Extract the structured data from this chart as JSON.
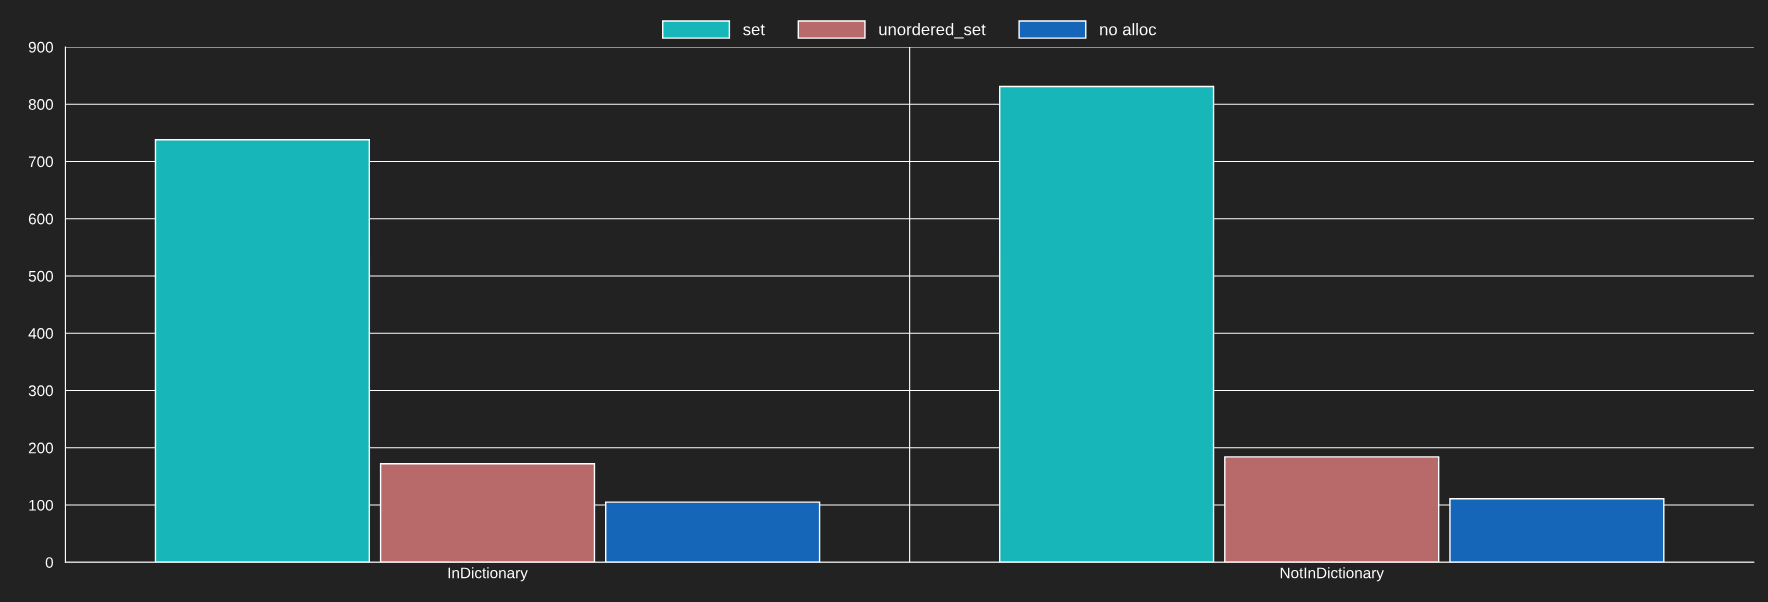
{
  "chart_data": {
    "type": "bar",
    "categories": [
      "InDictionary",
      "NotInDictionary"
    ],
    "series": [
      {
        "name": "set",
        "color": "#17b6b9",
        "values": [
          738,
          831
        ]
      },
      {
        "name": "unordered_set",
        "color": "#b86a6a",
        "values": [
          172,
          184
        ]
      },
      {
        "name": "no alloc",
        "color": "#1565b8",
        "values": [
          105,
          111
        ]
      }
    ],
    "ylim": [
      0,
      900
    ],
    "yticks": [
      0,
      100,
      200,
      300,
      400,
      500,
      600,
      700,
      800,
      900
    ],
    "grid": true,
    "legend": "top"
  }
}
